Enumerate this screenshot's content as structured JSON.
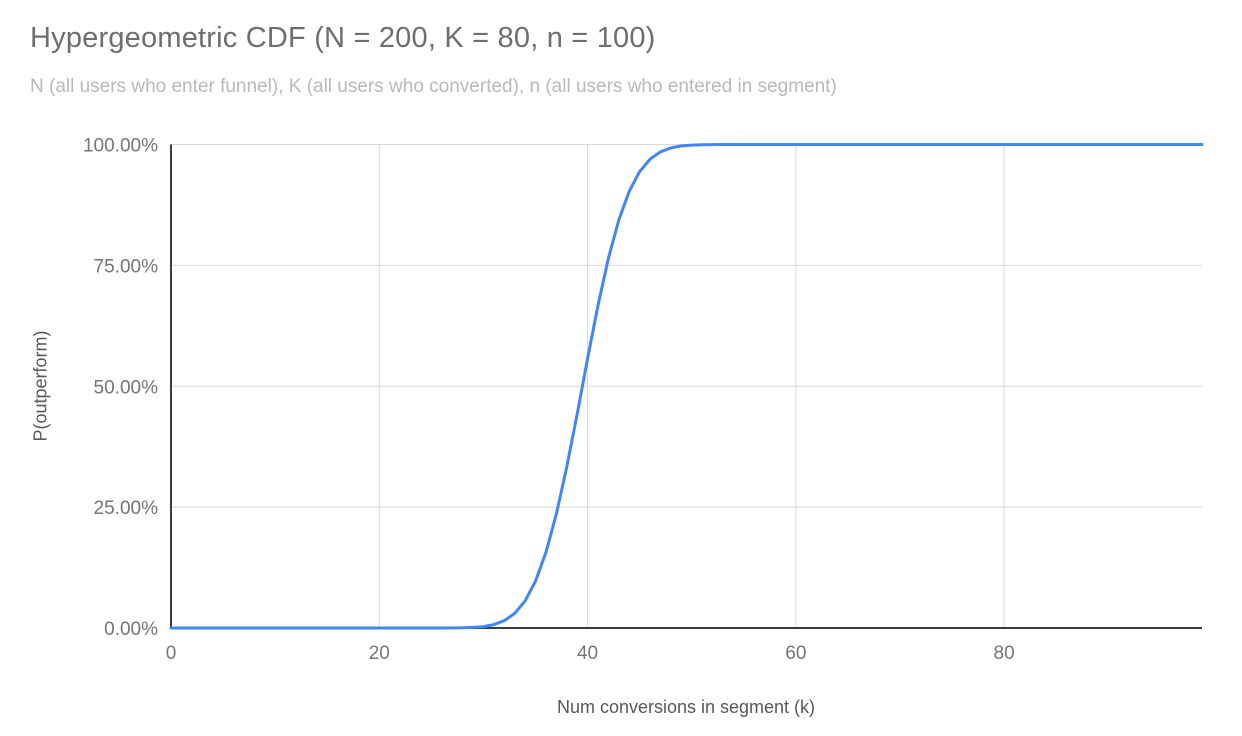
{
  "header": {
    "title": "Hypergeometric CDF (N = 200, K = 80, n = 100)",
    "subtitle": "N (all users who enter funnel), K (all users who converted), n (all users who entered in segment)"
  },
  "chart_data": {
    "type": "line",
    "title": "Hypergeometric CDF (N = 200, K = 80, n = 100)",
    "subtitle": "N (all users who enter funnel), K (all users who converted), n (all users who entered in segment)",
    "xlabel": "Num conversions in segment (k)",
    "ylabel": "P(outperform)",
    "xlim": [
      0,
      99
    ],
    "ylim": [
      0,
      1
    ],
    "grid": true,
    "legend": "none",
    "x_ticks": [
      {
        "label": "0",
        "value": 0
      },
      {
        "label": "20",
        "value": 20
      },
      {
        "label": "40",
        "value": 40
      },
      {
        "label": "60",
        "value": 60
      },
      {
        "label": "80",
        "value": 80
      }
    ],
    "y_ticks": [
      {
        "label": "0.00%",
        "value": 0
      },
      {
        "label": "25.00%",
        "value": 0.25
      },
      {
        "label": "50.00%",
        "value": 0.5
      },
      {
        "label": "75.00%",
        "value": 0.75
      },
      {
        "label": "100.00%",
        "value": 1
      }
    ],
    "colors": {
      "line": "#4285f4",
      "grid": "#d9d9d9",
      "axis": "#3d3d3d",
      "tick_text": "#757575",
      "title": "#6e6e6e",
      "subtitle": "#b9b9b9",
      "axis_title": "#55585c",
      "background": "#ffffff"
    },
    "series": [
      {
        "name": "P(outperform)",
        "x": [
          0,
          5,
          10,
          15,
          20,
          22,
          24,
          25,
          26,
          27,
          28,
          29,
          30,
          31,
          32,
          33,
          34,
          35,
          36,
          37,
          38,
          39,
          40,
          41,
          42,
          43,
          44,
          45,
          46,
          47,
          48,
          49,
          50,
          51,
          52,
          53,
          54,
          55,
          56,
          58,
          60,
          65,
          70,
          75,
          80,
          85,
          90,
          95,
          99
        ],
        "y": [
          0,
          0,
          0,
          0,
          0,
          0,
          3e-06,
          1.2e-05,
          4.3e-05,
          0.000141,
          0.000424,
          0.001169,
          0.002968,
          0.006949,
          0.015036,
          0.030132,
          0.056033,
          0.096885,
          0.156156,
          0.235294,
          0.332565,
          0.442648,
          0.557352,
          0.667435,
          0.764706,
          0.843844,
          0.903115,
          0.943967,
          0.969868,
          0.984964,
          0.993051,
          0.997032,
          0.998831,
          0.999576,
          0.999858,
          0.999957,
          0.999988,
          0.999997,
          0.999999,
          1,
          1,
          1,
          1,
          1,
          1,
          1,
          1,
          1,
          1
        ]
      }
    ]
  }
}
